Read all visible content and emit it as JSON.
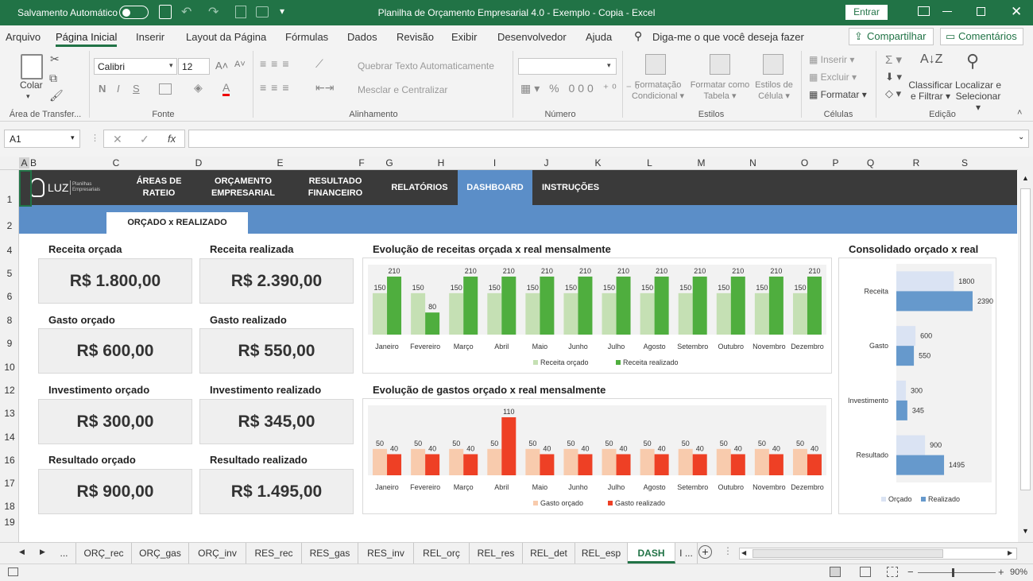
{
  "titlebar": {
    "autosave_label": "Salvamento Automático",
    "title": "Planilha de Orçamento Empresarial 4.0 - Exemplo - Copia  -  Excel",
    "signin_label": "Entrar"
  },
  "menu": {
    "items": [
      "Arquivo",
      "Página Inicial",
      "Inserir",
      "Layout da Página",
      "Fórmulas",
      "Dados",
      "Revisão",
      "Exibir",
      "Desenvolvedor",
      "Ajuda"
    ],
    "tell_me": "Diga-me o que você deseja fazer",
    "share_label": "Compartilhar",
    "comments_label": "Comentários"
  },
  "ribbon": {
    "paste_label": "Colar",
    "font_name": "Calibri",
    "font_size": "12",
    "wrap_label": "Quebrar Texto Automaticamente",
    "merge_label": "Mesclar e Centralizar",
    "cond_format_l1": "Formatação",
    "cond_format_l2": "Condicional",
    "table_format_l1": "Formatar como",
    "table_format_l2": "Tabela",
    "cell_styles_l1": "Estilos de",
    "cell_styles_l2": "Célula",
    "insert_label": "Inserir",
    "delete_label": "Excluir",
    "format_label": "Formatar",
    "sort_l1": "Classificar",
    "sort_l2": "e Filtrar",
    "find_l1": "Localizar e",
    "find_l2": "Selecionar",
    "groups": {
      "clipboard": "Área de Transfer...",
      "font": "Fonte",
      "alignment": "Alinhamento",
      "number": "Número",
      "styles": "Estilos",
      "cells": "Células",
      "editing": "Edição"
    }
  },
  "formula_bar": {
    "name_box": "A1",
    "fx": "fx",
    "formula": ""
  },
  "columns": [
    "A",
    "B",
    "C",
    "D",
    "E",
    "F",
    "G",
    "H",
    "I",
    "J",
    "K",
    "L",
    "M",
    "N",
    "O",
    "P",
    "Q",
    "R",
    "S"
  ],
  "rows": [
    "1",
    "2",
    "4",
    "5",
    "6",
    "8",
    "9",
    "10",
    "12",
    "13",
    "14",
    "16",
    "17",
    "18",
    "19"
  ],
  "dashboard": {
    "logo_text": "LUZ",
    "logo_sub1": "Planilhas",
    "logo_sub2": "Empresariais",
    "nav": [
      {
        "l1": "ÁREAS DE",
        "l2": "RATEIO"
      },
      {
        "l1": "ORÇAMENTO",
        "l2": "EMPRESARIAL"
      },
      {
        "l1": "RESULTADO",
        "l2": "FINANCEIRO"
      },
      {
        "l1": "RELATÓRIOS",
        "l2": ""
      },
      {
        "l1": "DASHBOARD",
        "l2": ""
      },
      {
        "l1": "INSTRUÇÕES",
        "l2": ""
      }
    ],
    "subtab": "ORÇADO x REALIZADO",
    "kpis": [
      {
        "label": "Receita orçada",
        "value": "R$ 1.800,00"
      },
      {
        "label": "Receita realizada",
        "value": "R$ 2.390,00"
      },
      {
        "label": "Gasto orçado",
        "value": "R$ 600,00"
      },
      {
        "label": "Gasto realizado",
        "value": "R$ 550,00"
      },
      {
        "label": "Investimento orçado",
        "value": "R$ 300,00"
      },
      {
        "label": "Investimento realizado",
        "value": "R$ 345,00"
      },
      {
        "label": "Resultado orçado",
        "value": "R$ 900,00"
      },
      {
        "label": "Resultado realizado",
        "value": "R$ 1.495,00"
      }
    ]
  },
  "chart_data": [
    {
      "type": "bar",
      "title": "Evolução de receitas orçada x real mensalmente",
      "categories": [
        "Janeiro",
        "Fevereiro",
        "Março",
        "Abril",
        "Maio",
        "Junho",
        "Julho",
        "Agosto",
        "Setembro",
        "Outubro",
        "Novembro",
        "Dezembro"
      ],
      "series": [
        {
          "name": "Receita orçado",
          "color": "#c5e0b4",
          "values": [
            150,
            150,
            150,
            150,
            150,
            150,
            150,
            150,
            150,
            150,
            150,
            150
          ]
        },
        {
          "name": "Receita realizado",
          "color": "#4fae3e",
          "values": [
            210,
            80,
            210,
            210,
            210,
            210,
            210,
            210,
            210,
            210,
            210,
            210
          ]
        }
      ],
      "ylim": [
        0,
        210
      ],
      "legend": "bottom"
    },
    {
      "type": "bar",
      "title": "Evolução de gastos orçado x real mensalmente",
      "categories": [
        "Janeiro",
        "Fevereiro",
        "Março",
        "Abril",
        "Maio",
        "Junho",
        "Julho",
        "Agosto",
        "Setembro",
        "Outubro",
        "Novembro",
        "Dezembro"
      ],
      "series": [
        {
          "name": "Gasto orçado",
          "color": "#f8cbad",
          "values": [
            50,
            50,
            50,
            50,
            50,
            50,
            50,
            50,
            50,
            50,
            50,
            50
          ]
        },
        {
          "name": "Gasto realizado",
          "color": "#ee4025",
          "values": [
            40,
            40,
            40,
            110,
            40,
            40,
            40,
            40,
            40,
            40,
            40,
            40
          ]
        }
      ],
      "ylim": [
        0,
        110
      ],
      "legend": "bottom"
    },
    {
      "type": "bar",
      "orientation": "horizontal",
      "title": "Consolidado orçado x real",
      "categories": [
        "Receita",
        "Gasto",
        "Investimento",
        "Resultado"
      ],
      "series": [
        {
          "name": "Orçado",
          "color": "#dae3f3",
          "values": [
            1800,
            600,
            300,
            900
          ]
        },
        {
          "name": "Realizado",
          "color": "#6699cc",
          "values": [
            2390,
            550,
            345,
            1495
          ]
        }
      ],
      "xlim": [
        0,
        2390
      ],
      "legend": "bottom"
    }
  ],
  "sheet_tabs": {
    "tabs": [
      "...",
      "ORÇ_rec",
      "ORÇ_gas",
      "ORÇ_inv",
      "RES_rec",
      "RES_gas",
      "RES_inv",
      "REL_orç",
      "REL_res",
      "REL_det",
      "REL_esp",
      "DASH",
      "I ..."
    ],
    "active": "DASH"
  },
  "status": {
    "zoom": "90%"
  },
  "colors": {
    "excel_green": "#217346",
    "nav_dark": "#3a3a3a",
    "nav_active": "#5b8ec8",
    "sub_bar": "#5b8ec8"
  }
}
